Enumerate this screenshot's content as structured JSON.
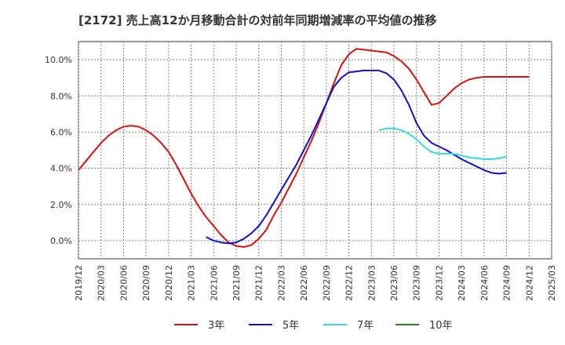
{
  "chart_data": {
    "type": "line",
    "title": "[2172]  売上高12か月移動合計の対前年同期増減率の平均値の推移",
    "xlabel": "",
    "ylabel": "",
    "x_ticks": [
      "2019/12",
      "2020/03",
      "2020/06",
      "2020/09",
      "2020/12",
      "2021/03",
      "2021/06",
      "2021/09",
      "2021/12",
      "2022/03",
      "2022/06",
      "2022/09",
      "2022/12",
      "2023/03",
      "2023/06",
      "2023/09",
      "2023/12",
      "2024/03",
      "2024/06",
      "2024/09",
      "2024/12",
      "2025/03"
    ],
    "y_ticks": [
      "0.0%",
      "2.0%",
      "4.0%",
      "6.0%",
      "8.0%",
      "10.0%"
    ],
    "ylim": [
      -1.0,
      11.0
    ],
    "grid": true,
    "legend_position": "bottom",
    "series": [
      {
        "name": "3年",
        "color": "#dd1111",
        "points": [
          [
            "2019/12",
            3.9
          ],
          [
            "2020/01",
            4.4
          ],
          [
            "2020/02",
            4.9
          ],
          [
            "2020/03",
            5.4
          ],
          [
            "2020/04",
            5.8
          ],
          [
            "2020/05",
            6.1
          ],
          [
            "2020/06",
            6.3
          ],
          [
            "2020/07",
            6.35
          ],
          [
            "2020/08",
            6.3
          ],
          [
            "2020/09",
            6.1
          ],
          [
            "2020/10",
            5.8
          ],
          [
            "2020/11",
            5.4
          ],
          [
            "2020/12",
            4.9
          ],
          [
            "2021/01",
            4.2
          ],
          [
            "2021/02",
            3.4
          ],
          [
            "2021/03",
            2.6
          ],
          [
            "2021/04",
            1.9
          ],
          [
            "2021/05",
            1.3
          ],
          [
            "2021/06",
            0.8
          ],
          [
            "2021/07",
            0.3
          ],
          [
            "2021/08",
            -0.1
          ],
          [
            "2021/09",
            -0.3
          ],
          [
            "2021/10",
            -0.35
          ],
          [
            "2021/11",
            -0.25
          ],
          [
            "2021/12",
            0.1
          ],
          [
            "2022/01",
            0.6
          ],
          [
            "2022/02",
            1.4
          ],
          [
            "2022/03",
            2.1
          ],
          [
            "2022/04",
            2.9
          ],
          [
            "2022/05",
            3.7
          ],
          [
            "2022/06",
            4.6
          ],
          [
            "2022/07",
            5.5
          ],
          [
            "2022/08",
            6.5
          ],
          [
            "2022/09",
            7.6
          ],
          [
            "2022/10",
            8.7
          ],
          [
            "2022/11",
            9.7
          ],
          [
            "2022/12",
            10.3
          ],
          [
            "2023/01",
            10.6
          ],
          [
            "2023/02",
            10.55
          ],
          [
            "2023/03",
            10.5
          ],
          [
            "2023/04",
            10.45
          ],
          [
            "2023/05",
            10.4
          ],
          [
            "2023/06",
            10.2
          ],
          [
            "2023/07",
            9.9
          ],
          [
            "2023/08",
            9.5
          ],
          [
            "2023/09",
            8.9
          ],
          [
            "2023/10",
            8.2
          ],
          [
            "2023/11",
            7.5
          ],
          [
            "2023/12",
            7.6
          ],
          [
            "2024/01",
            8.0
          ],
          [
            "2024/02",
            8.4
          ],
          [
            "2024/03",
            8.7
          ],
          [
            "2024/04",
            8.9
          ],
          [
            "2024/05",
            9.0
          ],
          [
            "2024/06",
            9.05
          ],
          [
            "2024/07",
            9.05
          ],
          [
            "2024/08",
            9.05
          ],
          [
            "2024/09",
            9.05
          ],
          [
            "2024/10",
            9.05
          ],
          [
            "2024/11",
            9.05
          ],
          [
            "2024/12",
            9.05
          ]
        ]
      },
      {
        "name": "5年",
        "color": "#1111cc",
        "points": [
          [
            "2021/05",
            0.2
          ],
          [
            "2021/06",
            0.0
          ],
          [
            "2021/07",
            -0.1
          ],
          [
            "2021/08",
            -0.15
          ],
          [
            "2021/09",
            -0.1
          ],
          [
            "2021/10",
            0.1
          ],
          [
            "2021/11",
            0.4
          ],
          [
            "2021/12",
            0.8
          ],
          [
            "2022/01",
            1.4
          ],
          [
            "2022/02",
            2.1
          ],
          [
            "2022/03",
            2.8
          ],
          [
            "2022/04",
            3.5
          ],
          [
            "2022/05",
            4.2
          ],
          [
            "2022/06",
            5.0
          ],
          [
            "2022/07",
            5.8
          ],
          [
            "2022/08",
            6.7
          ],
          [
            "2022/09",
            7.6
          ],
          [
            "2022/10",
            8.5
          ],
          [
            "2022/11",
            9.0
          ],
          [
            "2022/12",
            9.3
          ],
          [
            "2023/01",
            9.35
          ],
          [
            "2023/02",
            9.4
          ],
          [
            "2023/03",
            9.4
          ],
          [
            "2023/04",
            9.4
          ],
          [
            "2023/05",
            9.25
          ],
          [
            "2023/06",
            8.9
          ],
          [
            "2023/07",
            8.3
          ],
          [
            "2023/08",
            7.5
          ],
          [
            "2023/09",
            6.5
          ],
          [
            "2023/10",
            5.8
          ],
          [
            "2023/11",
            5.4
          ],
          [
            "2023/12",
            5.2
          ],
          [
            "2024/01",
            5.0
          ],
          [
            "2024/02",
            4.75
          ],
          [
            "2024/03",
            4.5
          ],
          [
            "2024/04",
            4.3
          ],
          [
            "2024/05",
            4.1
          ],
          [
            "2024/06",
            3.9
          ],
          [
            "2024/07",
            3.75
          ],
          [
            "2024/08",
            3.7
          ],
          [
            "2024/09",
            3.75
          ]
        ]
      },
      {
        "name": "7年",
        "color": "#33dddd",
        "points": [
          [
            "2023/04",
            6.1
          ],
          [
            "2023/05",
            6.2
          ],
          [
            "2023/06",
            6.2
          ],
          [
            "2023/07",
            6.1
          ],
          [
            "2023/08",
            5.9
          ],
          [
            "2023/09",
            5.6
          ],
          [
            "2023/10",
            5.2
          ],
          [
            "2023/11",
            4.9
          ],
          [
            "2023/12",
            4.8
          ],
          [
            "2024/01",
            4.8
          ],
          [
            "2024/02",
            4.8
          ],
          [
            "2024/03",
            4.7
          ],
          [
            "2024/04",
            4.6
          ],
          [
            "2024/05",
            4.55
          ],
          [
            "2024/06",
            4.5
          ],
          [
            "2024/07",
            4.5
          ],
          [
            "2024/08",
            4.55
          ],
          [
            "2024/09",
            4.65
          ]
        ]
      },
      {
        "name": "10年",
        "color": "#228822",
        "points": []
      }
    ]
  }
}
